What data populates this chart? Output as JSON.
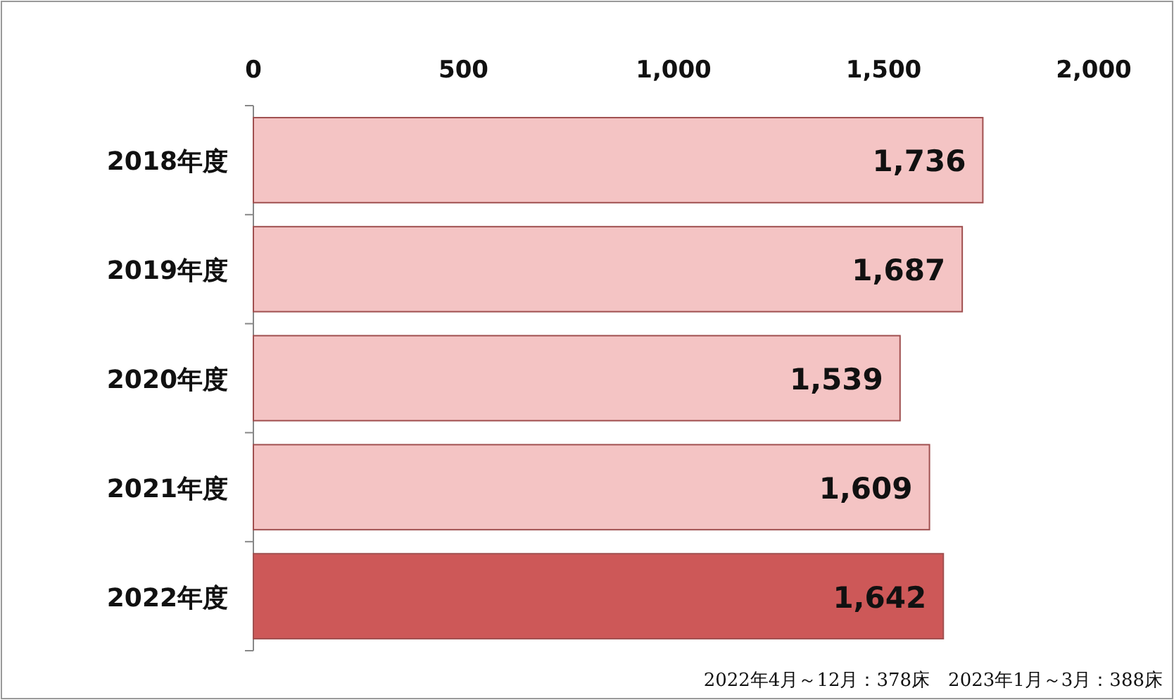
{
  "chart_data": {
    "type": "bar",
    "orientation": "horizontal",
    "categories": [
      "2018年度",
      "2019年度",
      "2020年度",
      "2021年度",
      "2022年度"
    ],
    "values": [
      1736,
      1687,
      1539,
      1609,
      1642
    ],
    "colors": [
      "#f4c4c4",
      "#f4c4c4",
      "#f4c4c4",
      "#f4c4c4",
      "#cd5858"
    ],
    "value_labels": [
      "1,736",
      "1,687",
      "1,539",
      "1,609",
      "1,642"
    ],
    "xlim": [
      0,
      2000
    ],
    "xticks": [
      0,
      500,
      {
        "value": 1000,
        "label": "1,000"
      },
      {
        "value": 1500,
        "label": "1,500"
      },
      {
        "value": 2000,
        "label": "2,000"
      }
    ],
    "grid": false,
    "annotations": [
      "2022年4月～12月：378床　2023年1月～3月：388床"
    ]
  }
}
